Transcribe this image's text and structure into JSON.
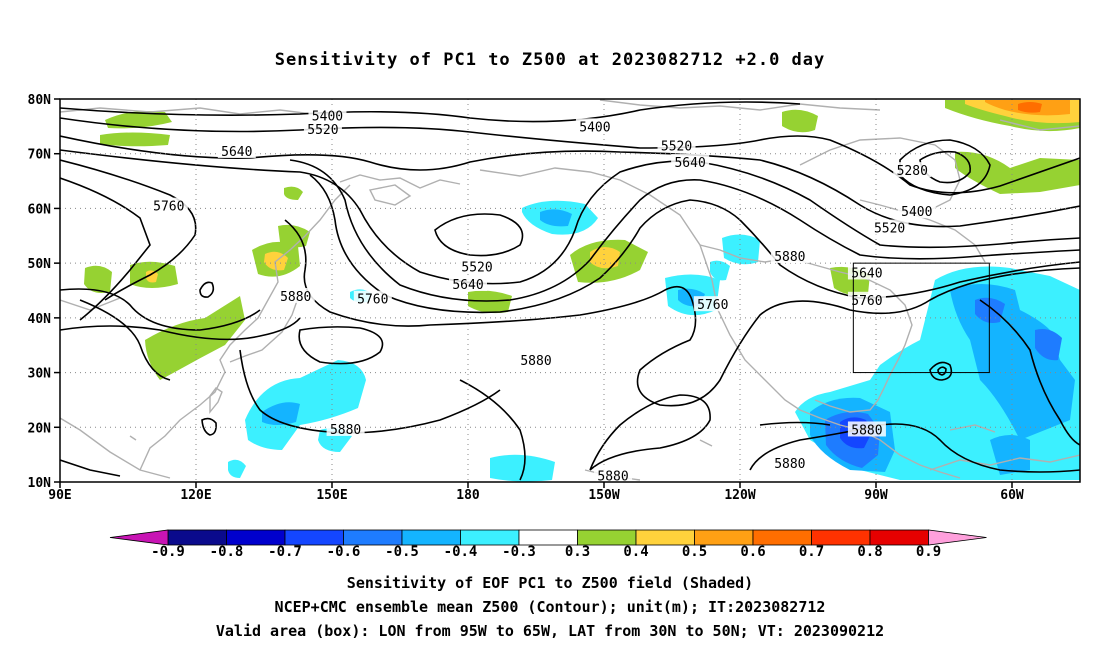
{
  "title": "Sensitivity of PC1 to Z500 at 2023082712 +2.0 day",
  "map": {
    "lat_labels": [
      "80N",
      "70N",
      "60N",
      "50N",
      "40N",
      "30N",
      "20N",
      "10N"
    ],
    "lon_labels": [
      "90E",
      "120E",
      "150E",
      "180",
      "150W",
      "120W",
      "90W",
      "60W"
    ],
    "valid_box": {
      "lon_from": "95W",
      "lon_to": "65W",
      "lat_from": "30N",
      "lat_to": "50N"
    },
    "contour_color": "#000000",
    "coast_color": "#b0b0b0",
    "contour_labels": [
      {
        "text": "5400",
        "lon": 149,
        "lat": 77
      },
      {
        "text": "5520",
        "lon": 148,
        "lat": 74.5
      },
      {
        "text": "5640",
        "lon": 129,
        "lat": 70.5
      },
      {
        "text": "5760",
        "lon": 114,
        "lat": 60.5
      },
      {
        "text": "5400",
        "lon": 208,
        "lat": 75
      },
      {
        "text": "5520",
        "lon": 226,
        "lat": 71.5
      },
      {
        "text": "5640",
        "lon": 229,
        "lat": 68.5
      },
      {
        "text": "5280",
        "lon": 278,
        "lat": 67
      },
      {
        "text": "5400",
        "lon": 279,
        "lat": 59.5
      },
      {
        "text": "5520",
        "lon": 273,
        "lat": 56.5
      },
      {
        "text": "5640",
        "lon": 268,
        "lat": 48.3
      },
      {
        "text": "5760",
        "lon": 268,
        "lat": 43.3
      },
      {
        "text": "5880",
        "lon": 251,
        "lat": 51.3
      },
      {
        "text": "5520",
        "lon": 182,
        "lat": 49.4
      },
      {
        "text": "5640",
        "lon": 180,
        "lat": 46.2
      },
      {
        "text": "5760",
        "lon": 159,
        "lat": 43.5
      },
      {
        "text": "5880",
        "lon": 142,
        "lat": 44
      },
      {
        "text": "5760",
        "lon": 234,
        "lat": 42.5
      },
      {
        "text": "5880",
        "lon": 195,
        "lat": 32.3
      },
      {
        "text": "5880",
        "lon": 153,
        "lat": 19.7
      },
      {
        "text": "5880",
        "lon": 268,
        "lat": 19.6
      },
      {
        "text": "5880",
        "lon": 251,
        "lat": 13.5
      },
      {
        "text": "5880",
        "lon": 212,
        "lat": 11.2
      }
    ]
  },
  "colorbar": {
    "labels": [
      "-0.9",
      "-0.8",
      "-0.7",
      "-0.6",
      "-0.5",
      "-0.4",
      "-0.3",
      "0.3",
      "0.4",
      "0.5",
      "0.6",
      "0.7",
      "0.8",
      "0.9"
    ],
    "colors": [
      "#0a0a8c",
      "#0000cd",
      "#1446ff",
      "#1e7cff",
      "#14b4ff",
      "#3cf0ff",
      "#ffffff",
      "#96d232",
      "#ffd23c",
      "#ffa014",
      "#ff6e00",
      "#ff3200",
      "#e60000"
    ],
    "low_arrow_color": "#c814b4",
    "high_arrow_color": "#ffa0dc"
  },
  "footer": {
    "line1": "Sensitivity of EOF PC1 to Z500 field (Shaded)",
    "line2": "NCEP+CMC ensemble mean Z500 (Contour); unit(m); IT:2023082712",
    "line3": "Valid area (box): LON from 95W to 65W, LAT from 30N to 50N; VT: 2023090212"
  }
}
